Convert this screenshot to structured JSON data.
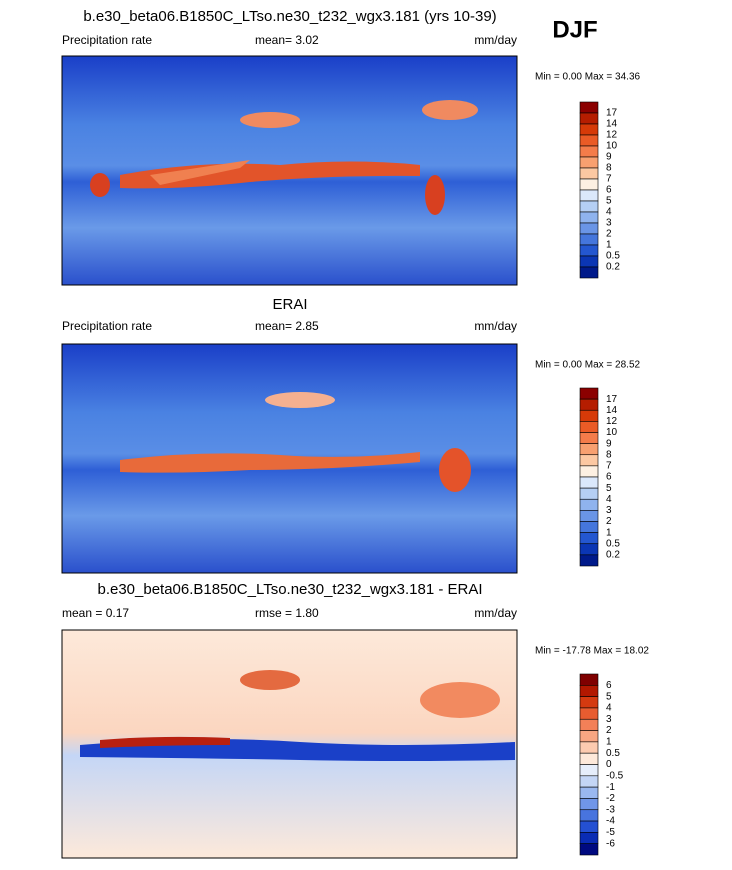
{
  "header": {
    "season": "DJF"
  },
  "panels": [
    {
      "title": "b.e30_beta06.B1850C_LTso.ne30_t232_wgx3.181 (yrs 10-39)",
      "left": "Precipitation rate",
      "center": "mean=   3.02",
      "right": "mm/day",
      "minmax": "Min =   0.00 Max =  34.36",
      "levels": [
        17,
        14,
        12,
        10,
        9,
        8,
        7,
        6,
        5,
        4,
        3,
        2,
        1,
        0.5,
        0.2
      ],
      "colors": [
        "#8b0000",
        "#b51d00",
        "#d63a08",
        "#ea5b26",
        "#f47c4a",
        "#f8a070",
        "#fcc8a2",
        "#fdf0e2",
        "#dbe8fb",
        "#b5cff4",
        "#8fb3ee",
        "#6a95e6",
        "#4576dc",
        "#2457d0",
        "#0b36b4",
        "#001a8a"
      ]
    },
    {
      "title": "ERAI",
      "left": "Precipitation rate",
      "center": "mean=   2.85",
      "right": "mm/day",
      "minmax": "Min =   0.00 Max =  28.52",
      "levels": [
        17,
        14,
        12,
        10,
        9,
        8,
        7,
        6,
        5,
        4,
        3,
        2,
        1,
        0.5,
        0.2
      ],
      "colors": [
        "#8b0000",
        "#b51d00",
        "#d63a08",
        "#ea5b26",
        "#f47c4a",
        "#f8a070",
        "#fcc8a2",
        "#fdf0e2",
        "#dbe8fb",
        "#b5cff4",
        "#8fb3ee",
        "#6a95e6",
        "#4576dc",
        "#2457d0",
        "#0b36b4",
        "#001a8a"
      ]
    },
    {
      "title": "b.e30_beta06.B1850C_LTso.ne30_t232_wgx3.181 - ERAI",
      "left": "mean =   0.17",
      "center": "rmse =   1.80",
      "right": "mm/day",
      "minmax": "Min = -17.78 Max =  18.02",
      "levels": [
        6,
        5,
        4,
        3,
        2,
        1,
        0.5,
        0,
        -0.5,
        -1,
        -2,
        -3,
        -4,
        -5,
        -6
      ],
      "colors": [
        "#7f0000",
        "#b21800",
        "#d43a10",
        "#e85c30",
        "#f38058",
        "#f8a682",
        "#fccbb0",
        "#fde9da",
        "#e6eefb",
        "#c4d6f6",
        "#9ab8f0",
        "#7096e8",
        "#4874de",
        "#2450d2",
        "#0a2cb4",
        "#000a80"
      ]
    }
  ]
}
